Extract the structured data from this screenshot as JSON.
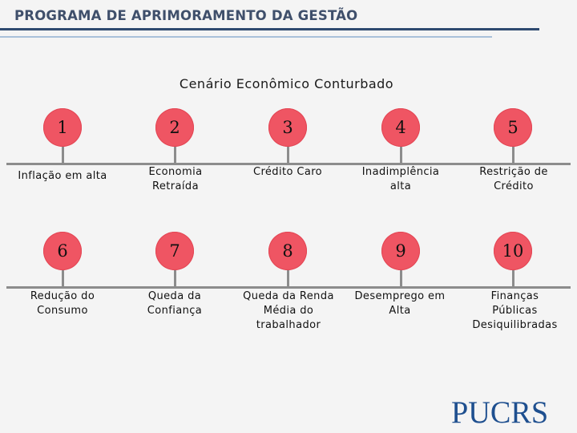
{
  "header": {
    "title": "PROGRAMA DE APRIMORAMENTO DA GESTÃO"
  },
  "subtitle": "Cenário Econômico Conturbado",
  "steps": [
    {
      "number": "1",
      "label": "Inflação em alta"
    },
    {
      "number": "2",
      "label": "Economia\nRetraída"
    },
    {
      "number": "3",
      "label": "Crédito Caro"
    },
    {
      "number": "4",
      "label": "Inadimplência\nalta"
    },
    {
      "number": "5",
      "label": "Restrição de\nCrédito"
    },
    {
      "number": "6",
      "label": "Redução do\nConsumo"
    },
    {
      "number": "7",
      "label": "Queda da\nConfiança"
    },
    {
      "number": "8",
      "label": "Queda da Renda\nMédia do\ntrabalhador"
    },
    {
      "number": "9",
      "label": "Desemprego em\nAlta"
    },
    {
      "number": "10",
      "label": "Finanças\nPúblicas\nDesiquilibradas"
    }
  ],
  "colors": {
    "circle": "#ef5563",
    "header": "#3f4f6b",
    "rule": "#2e4a70",
    "logo": "#1e4f8f"
  },
  "logo": "PUCRS"
}
